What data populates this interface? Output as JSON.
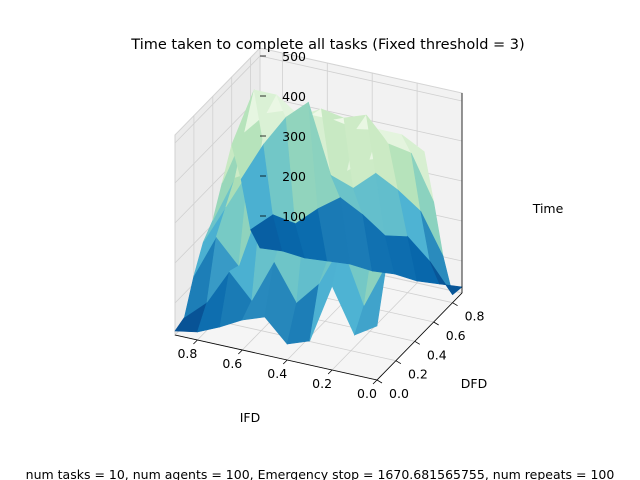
{
  "chart_data": {
    "type": "surface3d",
    "title": "Time taken to complete all tasks (Fixed threshold = 3)",
    "caption": "num tasks = 10, num agents = 100, Emergency stop = 1670.681565755, num repeats = 100",
    "xlabel": "IFD",
    "ylabel": "DFD",
    "zlabel": "Time",
    "x_ticks": [
      "0.0",
      "0.2",
      "0.4",
      "0.6",
      "0.8"
    ],
    "y_ticks": [
      "0.0",
      "0.2",
      "0.4",
      "0.6",
      "0.8"
    ],
    "z_ticks": [
      "100",
      "200",
      "300",
      "400",
      "500"
    ],
    "x": [
      0.0,
      0.1,
      0.2,
      0.3,
      0.4,
      0.5,
      0.6,
      0.7,
      0.8,
      0.9
    ],
    "y": [
      0.0,
      0.1,
      0.2,
      0.3,
      0.4,
      0.5,
      0.6,
      0.7,
      0.8,
      0.9
    ],
    "xlim": [
      0.0,
      0.9
    ],
    "ylim": [
      0.0,
      0.9
    ],
    "zlim": [
      20,
      520
    ],
    "colormap": "GnBu",
    "grid": true,
    "z": [
      [
        155,
        285,
        420,
        500,
        490,
        470,
        320,
        160,
        40,
        35
      ],
      [
        120,
        170,
        300,
        420,
        470,
        500,
        430,
        260,
        110,
        30
      ],
      [
        230,
        310,
        260,
        340,
        450,
        500,
        440,
        300,
        160,
        25
      ],
      [
        80,
        200,
        240,
        300,
        410,
        490,
        500,
        330,
        150,
        30
      ],
      [
        60,
        140,
        360,
        420,
        370,
        500,
        480,
        280,
        190,
        25
      ],
      [
        115,
        230,
        280,
        460,
        500,
        500,
        490,
        300,
        220,
        30
      ],
      [
        95,
        120,
        340,
        300,
        450,
        500,
        460,
        470,
        180,
        25
      ],
      [
        65,
        180,
        170,
        380,
        360,
        480,
        500,
        420,
        130,
        20
      ],
      [
        40,
        90,
        230,
        280,
        330,
        420,
        500,
        340,
        140,
        25
      ],
      [
        30,
        40,
        120,
        180,
        210,
        280,
        350,
        240,
        90,
        20
      ]
    ]
  }
}
